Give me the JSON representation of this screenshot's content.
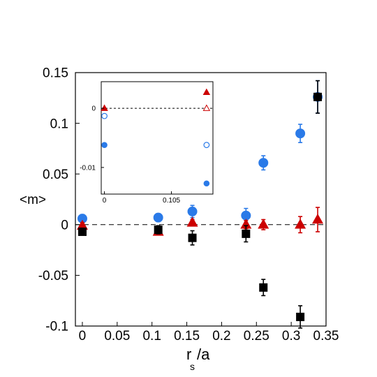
{
  "chart_data": [
    {
      "type": "scatter",
      "title": "",
      "xlabel": "r_s /a",
      "xlabel_main": "r",
      "xlabel_sub": "s",
      "xlabel_rest": "/a",
      "ylabel": "<m>",
      "xlim": [
        -0.01,
        0.35
      ],
      "ylim": [
        -0.1,
        0.15
      ],
      "xticks": [
        0,
        0.05,
        0.1,
        0.15,
        0.2,
        0.25,
        0.3,
        0.35
      ],
      "xtick_labels": [
        "0",
        "0.05",
        "0.1",
        "0.15",
        "0.2",
        "0.25",
        "0.3",
        "0.35"
      ],
      "yticks": [
        -0.1,
        -0.05,
        0,
        0.05,
        0.1,
        0.15
      ],
      "ytick_labels": [
        "-0.1",
        "-0.05",
        "0",
        "0.05",
        "0.1",
        "0.15"
      ],
      "reference_line": {
        "y": 0,
        "style": "dashed"
      },
      "grid": false,
      "series": [
        {
          "marker": "circle",
          "filled": true,
          "color": "#2a7ae8",
          "x": [
            0,
            0.109,
            0.158,
            0.235,
            0.26,
            0.313,
            0.338
          ],
          "y": [
            0.006,
            0.007,
            0.013,
            0.009,
            0.061,
            0.09,
            0.126
          ],
          "err": [
            0.004,
            0.004,
            0.006,
            0.007,
            0.007,
            0.009,
            0.016
          ]
        },
        {
          "marker": "triangle",
          "filled": true,
          "color": "#cc0000",
          "x": [
            0,
            0.109,
            0.158,
            0.235,
            0.26,
            0.313,
            0.338
          ],
          "y": [
            -0.001,
            -0.007,
            0.002,
            0.0,
            0.0,
            0.0,
            0.005
          ],
          "err": [
            0.003,
            0.003,
            0.003,
            0.004,
            0.005,
            0.008,
            0.012
          ]
        },
        {
          "marker": "square",
          "filled": true,
          "color": "#000000",
          "x": [
            0,
            0.109,
            0.158,
            0.235,
            0.26,
            0.313,
            0.338
          ],
          "y": [
            -0.007,
            -0.005,
            -0.013,
            -0.009,
            -0.062,
            -0.091,
            0.126
          ],
          "err": [
            0.003,
            0.004,
            0.007,
            0.008,
            0.008,
            0.011,
            0.016
          ]
        }
      ]
    },
    {
      "type": "scatter",
      "title": "",
      "inset": true,
      "xlim": [
        -0.005,
        0.17
      ],
      "ylim": [
        -0.0145,
        0.0045
      ],
      "xticks": [
        0,
        0.105
      ],
      "xtick_labels": [
        "0",
        "0.105"
      ],
      "yticks": [
        0,
        -0.01
      ],
      "ytick_labels": [
        "0",
        "-0.01"
      ],
      "reference_line": {
        "y": 0,
        "style": "dotted"
      },
      "series": [
        {
          "marker": "triangle",
          "filled": true,
          "color": "#cc0000",
          "x": [
            0,
            0.16
          ],
          "y": [
            0.0,
            0.0027
          ]
        },
        {
          "marker": "triangle",
          "filled": false,
          "color": "#cc0000",
          "x": [
            0.16
          ],
          "y": [
            0.0
          ]
        },
        {
          "marker": "circle",
          "filled": false,
          "color": "#2a7ae8",
          "x": [
            0,
            0.16
          ],
          "y": [
            -0.0013,
            -0.0062
          ]
        },
        {
          "marker": "circle",
          "filled": true,
          "color": "#2a7ae8",
          "x": [
            0,
            0.16
          ],
          "y": [
            -0.0062,
            -0.0127
          ]
        }
      ]
    }
  ]
}
